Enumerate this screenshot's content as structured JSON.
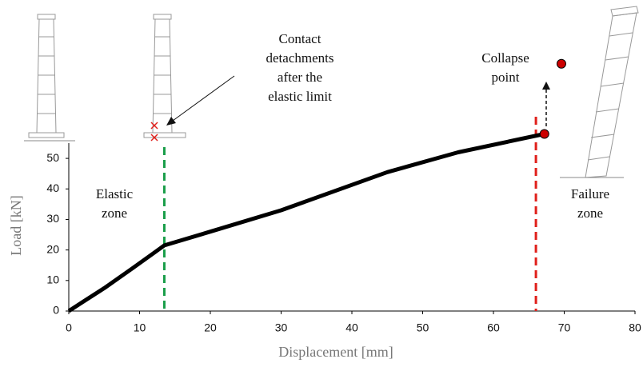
{
  "chart_data": {
    "type": "line",
    "xlabel": "Displacement [mm]",
    "ylabel": "Load [kN]",
    "xlim": [
      0,
      80
    ],
    "xticks": [
      0,
      10,
      20,
      30,
      40,
      50,
      60,
      70,
      80
    ],
    "ylim": [
      0,
      55
    ],
    "yticks": [
      0,
      10,
      20,
      30,
      40,
      50
    ],
    "series": [
      {
        "color": "#000000",
        "x": [
          0,
          2,
          5,
          9,
          12,
          13.5,
          20,
          30,
          45,
          55,
          67.2
        ],
        "values": [
          0,
          3,
          7.5,
          14,
          19,
          21.5,
          26,
          33,
          45.5,
          52,
          58
        ]
      }
    ],
    "end_point": {
      "x": 67.2,
      "y": 58,
      "color": "#cc0000"
    },
    "collapse_marker": {
      "x": 69.6,
      "y": 81,
      "color": "#cc0000"
    },
    "elastic_limit": {
      "x": 13.5,
      "color": "#1a9e4a"
    },
    "failure_limit": {
      "x": 66,
      "color": "#e0201b"
    },
    "annotations": {
      "elastic": [
        "Elastic",
        "zone"
      ],
      "failure": [
        "Failure",
        "zone"
      ],
      "collapse": [
        "Collapse",
        "point"
      ],
      "contact": [
        "Contact",
        "detachments",
        "after the",
        "elastic limit"
      ]
    }
  }
}
